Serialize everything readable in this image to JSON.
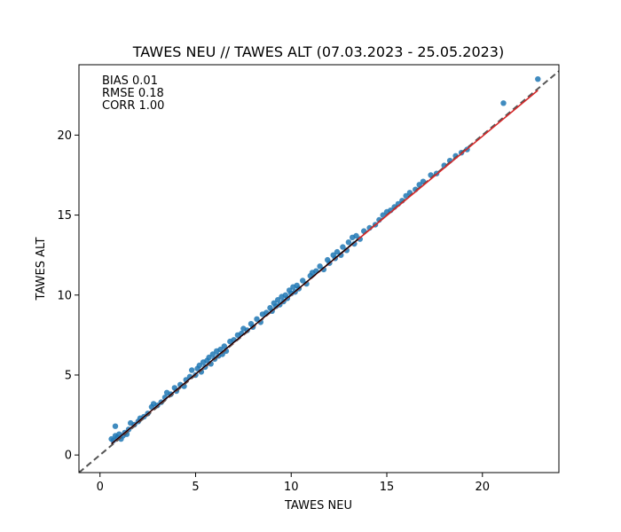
{
  "chart_data": {
    "type": "scatter",
    "title": "TAWES NEU // TAWES ALT (07.03.2023 - 25.05.2023)",
    "xlabel": "TAWES NEU",
    "ylabel": "TAWES ALT",
    "xlim": [
      -1.1,
      24.0
    ],
    "ylim": [
      -1.1,
      24.4
    ],
    "xticks": [
      0,
      5,
      10,
      15,
      20
    ],
    "yticks": [
      0,
      5,
      10,
      15,
      20
    ],
    "stats": [
      "BIAS 0.01",
      "RMSE 0.18",
      "CORR 1.00"
    ],
    "colors": {
      "points": "#1f77b4",
      "fit_line": "#d62728",
      "diagonal": "#555555",
      "trend_short": "#000000"
    },
    "fit_line": {
      "x": [
        0.6,
        22.9
      ],
      "y": [
        0.7,
        22.8
      ]
    },
    "diagonal": {
      "x": [
        -1.1,
        24.0
      ],
      "y": [
        -1.1,
        24.0
      ]
    },
    "points": [
      [
        0.6,
        1.0
      ],
      [
        0.7,
        0.9
      ],
      [
        0.8,
        1.2
      ],
      [
        0.8,
        1.8
      ],
      [
        0.9,
        1.1
      ],
      [
        1.0,
        1.3
      ],
      [
        1.1,
        1.0
      ],
      [
        1.2,
        1.2
      ],
      [
        1.3,
        1.4
      ],
      [
        1.4,
        1.3
      ],
      [
        1.5,
        1.6
      ],
      [
        1.6,
        2.0
      ],
      [
        1.8,
        1.9
      ],
      [
        2.0,
        2.1
      ],
      [
        2.1,
        2.3
      ],
      [
        2.3,
        2.4
      ],
      [
        2.5,
        2.6
      ],
      [
        2.7,
        3.0
      ],
      [
        2.8,
        3.2
      ],
      [
        3.0,
        3.1
      ],
      [
        3.2,
        3.3
      ],
      [
        3.4,
        3.6
      ],
      [
        3.5,
        3.9
      ],
      [
        3.7,
        3.8
      ],
      [
        3.9,
        4.2
      ],
      [
        4.0,
        4.0
      ],
      [
        4.2,
        4.4
      ],
      [
        4.4,
        4.3
      ],
      [
        4.5,
        4.7
      ],
      [
        4.7,
        4.9
      ],
      [
        4.8,
        5.3
      ],
      [
        5.0,
        5.0
      ],
      [
        5.1,
        5.4
      ],
      [
        5.2,
        5.6
      ],
      [
        5.3,
        5.2
      ],
      [
        5.4,
        5.8
      ],
      [
        5.5,
        5.5
      ],
      [
        5.6,
        5.9
      ],
      [
        5.7,
        6.1
      ],
      [
        5.8,
        5.7
      ],
      [
        5.9,
        6.3
      ],
      [
        6.0,
        6.0
      ],
      [
        6.1,
        6.5
      ],
      [
        6.2,
        6.2
      ],
      [
        6.3,
        6.6
      ],
      [
        6.4,
        6.3
      ],
      [
        6.5,
        6.8
      ],
      [
        6.6,
        6.5
      ],
      [
        6.8,
        7.1
      ],
      [
        7.0,
        7.2
      ],
      [
        7.2,
        7.5
      ],
      [
        7.4,
        7.6
      ],
      [
        7.5,
        7.9
      ],
      [
        7.7,
        7.8
      ],
      [
        7.9,
        8.2
      ],
      [
        8.0,
        8.0
      ],
      [
        8.2,
        8.5
      ],
      [
        8.4,
        8.3
      ],
      [
        8.5,
        8.8
      ],
      [
        8.7,
        8.9
      ],
      [
        8.9,
        9.2
      ],
      [
        9.0,
        9.0
      ],
      [
        9.1,
        9.5
      ],
      [
        9.2,
        9.3
      ],
      [
        9.3,
        9.7
      ],
      [
        9.4,
        9.4
      ],
      [
        9.5,
        9.9
      ],
      [
        9.6,
        9.6
      ],
      [
        9.7,
        10.0
      ],
      [
        9.8,
        9.8
      ],
      [
        9.9,
        10.3
      ],
      [
        10.0,
        10.1
      ],
      [
        10.1,
        10.5
      ],
      [
        10.2,
        10.2
      ],
      [
        10.3,
        10.6
      ],
      [
        10.4,
        10.4
      ],
      [
        10.6,
        10.9
      ],
      [
        10.8,
        10.7
      ],
      [
        11.0,
        11.2
      ],
      [
        11.1,
        11.4
      ],
      [
        11.3,
        11.5
      ],
      [
        11.5,
        11.8
      ],
      [
        11.7,
        11.6
      ],
      [
        11.9,
        12.2
      ],
      [
        12.0,
        12.0
      ],
      [
        12.2,
        12.5
      ],
      [
        12.3,
        12.3
      ],
      [
        12.4,
        12.7
      ],
      [
        12.6,
        12.5
      ],
      [
        12.7,
        13.0
      ],
      [
        12.9,
        12.8
      ],
      [
        13.0,
        13.3
      ],
      [
        13.2,
        13.6
      ],
      [
        13.3,
        13.2
      ],
      [
        13.4,
        13.7
      ],
      [
        13.6,
        13.5
      ],
      [
        13.8,
        14.0
      ],
      [
        14.1,
        14.2
      ],
      [
        14.4,
        14.4
      ],
      [
        14.6,
        14.7
      ],
      [
        14.8,
        15.0
      ],
      [
        15.0,
        15.2
      ],
      [
        15.2,
        15.3
      ],
      [
        15.4,
        15.5
      ],
      [
        15.6,
        15.7
      ],
      [
        15.8,
        15.9
      ],
      [
        16.0,
        16.2
      ],
      [
        16.2,
        16.4
      ],
      [
        16.5,
        16.6
      ],
      [
        16.7,
        16.9
      ],
      [
        16.9,
        17.1
      ],
      [
        17.3,
        17.5
      ],
      [
        17.6,
        17.6
      ],
      [
        18.0,
        18.1
      ],
      [
        18.3,
        18.4
      ],
      [
        18.6,
        18.7
      ],
      [
        18.9,
        18.9
      ],
      [
        19.2,
        19.1
      ],
      [
        21.1,
        22.0
      ],
      [
        22.9,
        23.5
      ]
    ]
  }
}
